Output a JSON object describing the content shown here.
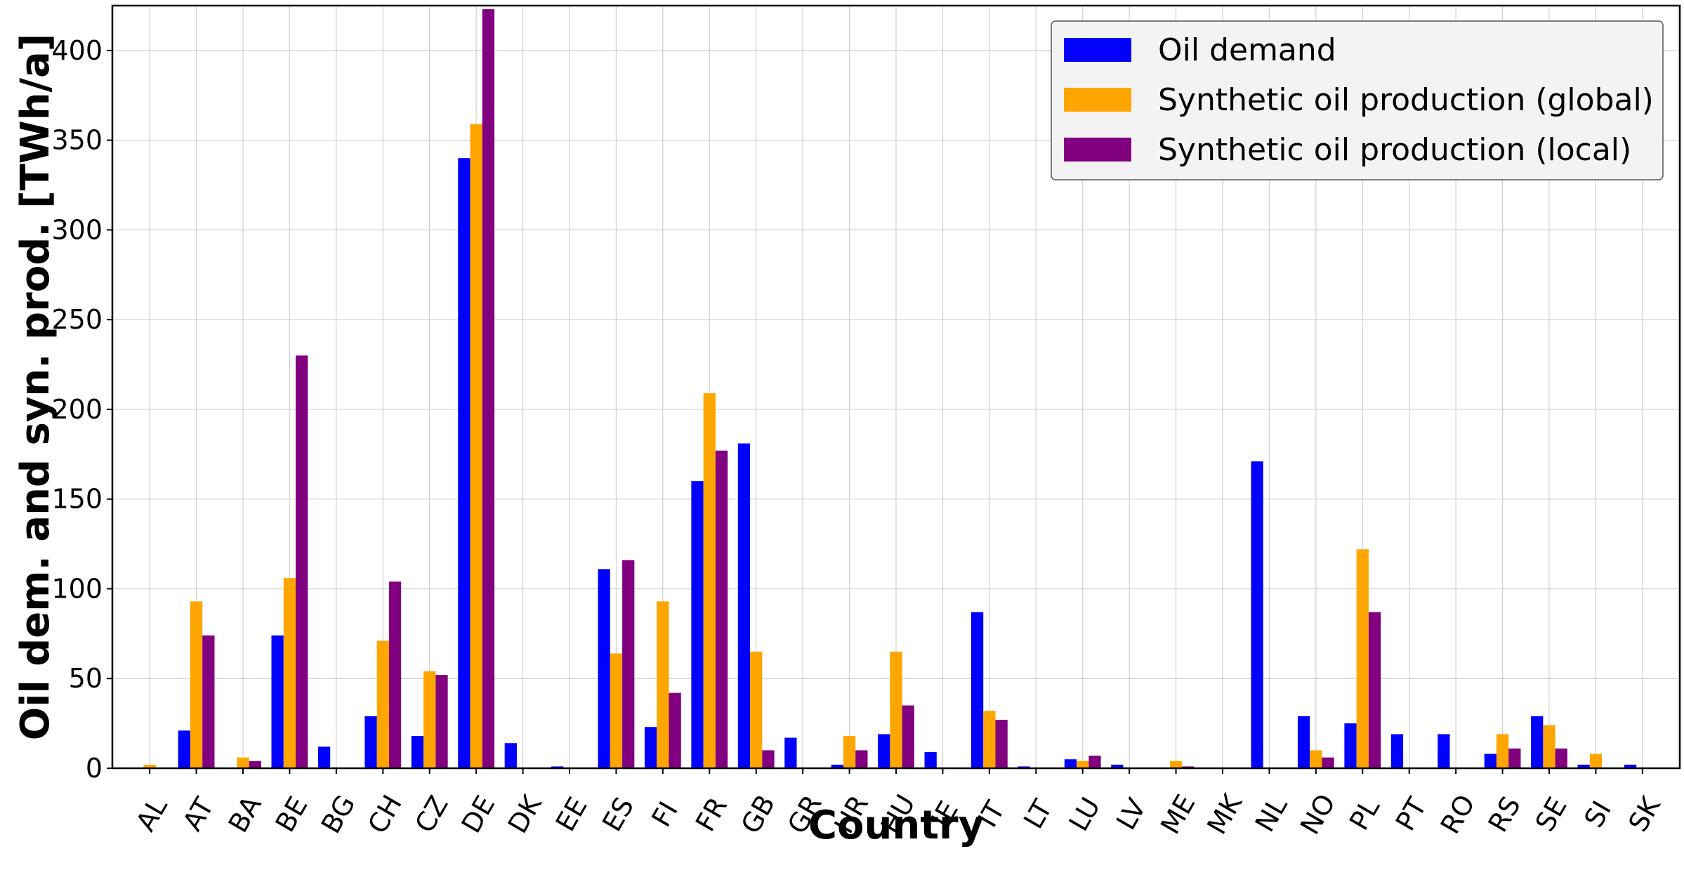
{
  "chart_data": {
    "type": "bar",
    "xlabel": "Country",
    "ylabel": "Oil dem. and syn. prod. [TWh/a]",
    "ylim": [
      0,
      425
    ],
    "yticks": [
      0,
      50,
      100,
      150,
      200,
      250,
      300,
      350,
      400
    ],
    "grid": true,
    "legend_position": "top-right",
    "categories": [
      "AL",
      "AT",
      "BA",
      "BE",
      "BG",
      "CH",
      "CZ",
      "DE",
      "DK",
      "EE",
      "ES",
      "FI",
      "FR",
      "GB",
      "GR",
      "HR",
      "HU",
      "IE",
      "IT",
      "LT",
      "LU",
      "LV",
      "ME",
      "MK",
      "NL",
      "NO",
      "PL",
      "PT",
      "RO",
      "RS",
      "SE",
      "SI",
      "SK"
    ],
    "series": [
      {
        "name": "Oil demand",
        "color": "#0000ff",
        "values": [
          0,
          21,
          0,
          74,
          12,
          29,
          18,
          340,
          14,
          1,
          111,
          23,
          160,
          181,
          17,
          2,
          19,
          9,
          87,
          1,
          5,
          2,
          0,
          0,
          171,
          29,
          25,
          19,
          19,
          8,
          29,
          2,
          2
        ]
      },
      {
        "name": "Synthetic oil production (global)",
        "color": "#ffa500",
        "values": [
          2,
          93,
          6,
          106,
          0,
          71,
          54,
          359,
          0,
          0,
          64,
          93,
          209,
          65,
          0,
          18,
          65,
          0,
          32,
          0,
          4,
          0,
          4,
          0,
          0,
          10,
          122,
          0,
          0,
          19,
          24,
          8,
          0
        ]
      },
      {
        "name": "Synthetic oil production (local)",
        "color": "#800080",
        "values": [
          0,
          74,
          4,
          230,
          0,
          104,
          52,
          423,
          0,
          0,
          116,
          42,
          177,
          10,
          0,
          10,
          35,
          0,
          27,
          0,
          7,
          0,
          1,
          0,
          0,
          6,
          87,
          0,
          0,
          11,
          11,
          0,
          0
        ]
      }
    ]
  }
}
